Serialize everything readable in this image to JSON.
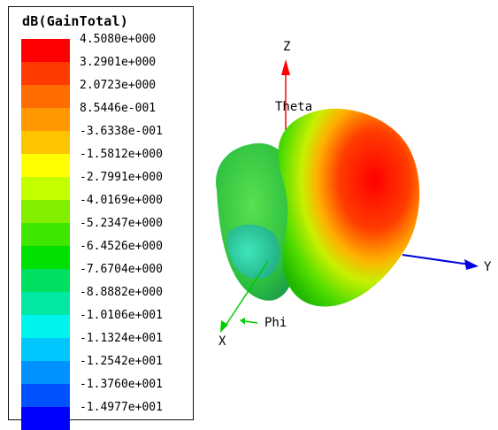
{
  "legend": {
    "title": "dB(GainTotal)",
    "entries": [
      {
        "value": "4.5080e+000",
        "color": "#ff0000"
      },
      {
        "value": "3.2901e+000",
        "color": "#ff3a00"
      },
      {
        "value": "2.0723e+000",
        "color": "#ff6c00"
      },
      {
        "value": "8.5446e-001",
        "color": "#ff9800"
      },
      {
        "value": "-3.6338e-001",
        "color": "#ffc400"
      },
      {
        "value": "-1.5812e+000",
        "color": "#ffff00"
      },
      {
        "value": "-2.7991e+000",
        "color": "#c4ff00"
      },
      {
        "value": "-4.0169e+000",
        "color": "#82ee00"
      },
      {
        "value": "-5.2347e+000",
        "color": "#3ee600"
      },
      {
        "value": "-6.4526e+000",
        "color": "#00e000"
      },
      {
        "value": "-7.6704e+000",
        "color": "#00e060"
      },
      {
        "value": "-8.8882e+000",
        "color": "#00e8a4"
      },
      {
        "value": "-1.0106e+001",
        "color": "#00f4ee"
      },
      {
        "value": "-1.1324e+001",
        "color": "#00c8ff"
      },
      {
        "value": "-1.2542e+001",
        "color": "#0092ff"
      },
      {
        "value": "-1.3760e+001",
        "color": "#0052ff"
      },
      {
        "value": "-1.4977e+001",
        "color": "#0000ff"
      }
    ]
  },
  "axes": {
    "z_label": "Z",
    "y_label": "Y",
    "x_label": "X",
    "theta_label": "Theta",
    "phi_label": "Phi",
    "z_color": "#ff0000",
    "y_color": "#0000dd",
    "x_color": "#00cc00"
  }
}
